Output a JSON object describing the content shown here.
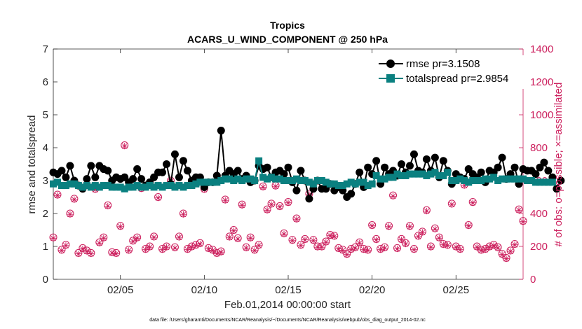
{
  "chart_data": {
    "type": "line",
    "title": "Tropics",
    "subtitle": "ACARS_U_WIND_COMPONENT @ 250 hPa",
    "xlabel": "Feb.01,2014 00:00:00 start",
    "ylabel": "rmse and totalspread",
    "ylabel_right": "# of obs: o=possible; ×=assimilated",
    "xlim": [
      1,
      29
    ],
    "ylim": [
      0,
      7
    ],
    "ylim_right": [
      0,
      1400
    ],
    "x_ticks": [
      {
        "value": 5,
        "label": "02/05"
      },
      {
        "value": 10,
        "label": "02/10"
      },
      {
        "value": 15,
        "label": "02/15"
      },
      {
        "value": 20,
        "label": "02/20"
      },
      {
        "value": 25,
        "label": "02/25"
      }
    ],
    "y_ticks": [
      "0",
      "1",
      "2",
      "3",
      "4",
      "5",
      "6",
      "7"
    ],
    "y_ticks_right": [
      "0",
      "200",
      "400",
      "600",
      "800",
      "1000",
      "1200",
      "1400"
    ],
    "x_step_days": 0.25,
    "series": [
      {
        "name": "rmse pr=3.1508",
        "color": "#000000",
        "marker": "circle",
        "axis": "left",
        "values": [
          3.25,
          3.2,
          3.3,
          3.1,
          3.45,
          3.0,
          2.85,
          2.75,
          3.05,
          3.45,
          3.1,
          3.45,
          3.35,
          3.3,
          3.0,
          3.1,
          3.05,
          3.1,
          2.95,
          3.05,
          3.35,
          3.05,
          2.85,
          2.95,
          3.1,
          3.25,
          3.25,
          3.5,
          2.9,
          3.8,
          3.1,
          3.6,
          3.3,
          3.0,
          3.1,
          3.1,
          2.8,
          2.95,
          2.95,
          3.15,
          4.52,
          3.15,
          3.3,
          3.2,
          3.3,
          3.05,
          3.15,
          2.95,
          3.0,
          3.45,
          3.35,
          3.4,
          3.1,
          3.25,
          3.3,
          3.2,
          3.4,
          2.95,
          2.7,
          3.3,
          3.0,
          2.45,
          2.75,
          3.0,
          2.75,
          2.75,
          2.9,
          2.7,
          2.8,
          2.7,
          2.5,
          2.6,
          2.9,
          3.25,
          2.8,
          3.4,
          3.2,
          3.6,
          2.9,
          3.4,
          3.2,
          3.3,
          3.15,
          3.5,
          3.25,
          3.45,
          3.8,
          3.3,
          3.25,
          3.65,
          3.3,
          3.7,
          3.1,
          3.6,
          3.3,
          2.9,
          3.2,
          3.1,
          3.05,
          3.35,
          3.2,
          3.1,
          3.25,
          2.95,
          3.3,
          3.25,
          3.4,
          3.7,
          3.05,
          3.2,
          3.4,
          2.9,
          3.35,
          3.3,
          3.3,
          3.2,
          3.4,
          3.55,
          3.3,
          3.1,
          2.75,
          3.0
        ]
      },
      {
        "name": "totalspread pr=2.9854",
        "color": "#0a8080",
        "marker": "square",
        "axis": "left",
        "values": [
          2.9,
          2.95,
          2.85,
          2.85,
          2.9,
          2.9,
          2.85,
          2.8,
          2.85,
          2.8,
          2.85,
          2.8,
          2.85,
          2.85,
          2.8,
          2.8,
          2.8,
          2.75,
          2.8,
          2.8,
          2.85,
          2.8,
          2.8,
          2.85,
          2.8,
          2.85,
          2.8,
          2.85,
          2.85,
          2.8,
          2.85,
          2.8,
          2.85,
          2.85,
          2.9,
          2.95,
          2.95,
          2.95,
          2.95,
          2.95,
          3.0,
          3.05,
          3.05,
          3.0,
          3.05,
          3.0,
          3.05,
          3.05,
          3.0,
          3.6,
          3.1,
          3.05,
          3.1,
          3.05,
          3.05,
          3.0,
          3.0,
          3.0,
          3.05,
          3.0,
          3.0,
          2.95,
          2.9,
          3.0,
          3.0,
          2.95,
          2.9,
          2.9,
          2.85,
          2.85,
          2.9,
          2.95,
          2.9,
          2.95,
          2.95,
          2.85,
          2.9,
          3.15,
          3.05,
          3.05,
          3.1,
          3.1,
          3.2,
          3.15,
          3.15,
          3.2,
          3.2,
          3.2,
          3.2,
          3.15,
          3.2,
          3.25,
          3.15,
          3.15,
          3.25,
          3.0,
          3.0,
          3.05,
          3.0,
          2.95,
          3.0,
          3.0,
          3.0,
          3.05,
          3.05,
          3.1,
          3.0,
          3.05,
          3.05,
          3.05,
          3.05,
          3.05,
          3.05,
          3.0,
          3.0,
          2.95,
          2.95,
          2.95,
          2.95,
          2.95
        ]
      },
      {
        "name": "possible obs",
        "color": "#cc1f5d",
        "marker": "circle-open",
        "axis": "right",
        "values": [
          255,
          515,
          180,
          210,
          400,
          490,
          160,
          190,
          175,
          160,
          550,
          225,
          255,
          450,
          165,
          160,
          325,
          815,
          180,
          235,
          255,
          555,
          185,
          200,
          260,
          500,
          185,
          200,
          600,
          195,
          260,
          400,
          185,
          200,
          210,
          220,
          550,
          190,
          180,
          160,
          170,
          485,
          260,
          300,
          250,
          455,
          195,
          255,
          180,
          210,
          565,
          425,
          460,
          570,
          445,
          280,
          470,
          240,
          370,
          210,
          245,
          520,
          240,
          200,
          200,
          230,
          270,
          265,
          190,
          180,
          155,
          185,
          195,
          225,
          185,
          180,
          330,
          245,
          185,
          195,
          325,
          510,
          190,
          245,
          220,
          325,
          185,
          265,
          290,
          420,
          200,
          310,
          255,
          215,
          210,
          460,
          200,
          185,
          575,
          330,
          470,
          200,
          180,
          185,
          200,
          210,
          195,
          155,
          130,
          175,
          215,
          425,
          355,
          200,
          225,
          310,
          190,
          440,
          210,
          240,
          350,
          390,
          205,
          195
        ]
      },
      {
        "name": "assimilated obs",
        "color": "#cc1f5d",
        "marker": "x",
        "axis": "right",
        "values": [
          250,
          510,
          175,
          205,
          395,
          485,
          155,
          185,
          170,
          155,
          545,
          220,
          250,
          445,
          160,
          155,
          320,
          810,
          175,
          230,
          250,
          550,
          180,
          195,
          255,
          495,
          180,
          195,
          595,
          190,
          255,
          395,
          180,
          195,
          205,
          215,
          545,
          185,
          175,
          155,
          165,
          480,
          255,
          295,
          245,
          450,
          190,
          250,
          175,
          205,
          560,
          420,
          455,
          565,
          440,
          275,
          465,
          235,
          365,
          205,
          240,
          515,
          235,
          195,
          195,
          225,
          265,
          260,
          185,
          175,
          150,
          180,
          190,
          220,
          180,
          175,
          325,
          240,
          180,
          190,
          320,
          505,
          185,
          240,
          215,
          320,
          180,
          260,
          285,
          415,
          195,
          305,
          250,
          210,
          205,
          455,
          195,
          180,
          570,
          325,
          465,
          195,
          175,
          180,
          195,
          205,
          190,
          150,
          125,
          170,
          210,
          420,
          350,
          195,
          220,
          305,
          185,
          435,
          205,
          235,
          345,
          385,
          200,
          190
        ]
      }
    ],
    "legend": [
      {
        "label": "rmse pr=3.1508",
        "marker": "circle",
        "color": "#000000"
      },
      {
        "label": "totalspread pr=2.9854",
        "marker": "square",
        "color": "#0a8080"
      }
    ],
    "legend_position": "top-right",
    "footnote": "data file: /Users/gharamti/Documents/NCAR/Reanalysis/~/Documents/NCAR/Reanalysis/webpub/obs_diag_output_2014-02.nc",
    "right_axis_color": "#cc1f5d"
  }
}
